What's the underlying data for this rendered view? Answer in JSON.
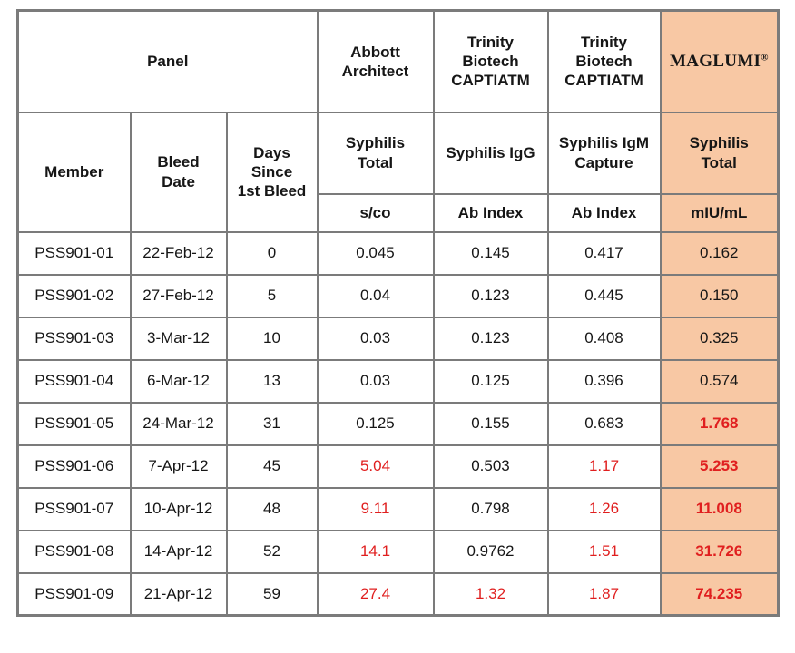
{
  "chart_data": {
    "type": "table",
    "panel_label": "Panel",
    "col_headers": {
      "member": "Member",
      "bleed_date": "Bleed\nDate",
      "days_since": "Days\nSince\n1st Bleed"
    },
    "assays": [
      {
        "vendor": "Abbott\nArchitect",
        "test": "Syphilis\nTotal",
        "unit": "s/co"
      },
      {
        "vendor": "Trinity\nBiotech\nCAPTIATM",
        "test": "Syphilis IgG",
        "unit": "Ab Index"
      },
      {
        "vendor": "Trinity\nBiotech\nCAPTIATM",
        "test": "Syphilis IgM\nCapture",
        "unit": "Ab Index"
      },
      {
        "vendor": "MAGLUMI",
        "vendor_reg": "®",
        "test": "Syphilis\nTotal",
        "unit": "mIU/mL"
      }
    ],
    "rows": [
      {
        "member": "PSS901-01",
        "bleed_date": "22-Feb-12",
        "days_since": "0",
        "abbott": "0.045",
        "igg": "0.145",
        "igm": "0.417",
        "maglumi": "0.162",
        "red_flags": []
      },
      {
        "member": "PSS901-02",
        "bleed_date": "27-Feb-12",
        "days_since": "5",
        "abbott": "0.04",
        "igg": "0.123",
        "igm": "0.445",
        "maglumi": "0.150",
        "red_flags": []
      },
      {
        "member": "PSS901-03",
        "bleed_date": "3-Mar-12",
        "days_since": "10",
        "abbott": "0.03",
        "igg": "0.123",
        "igm": "0.408",
        "maglumi": "0.325",
        "red_flags": []
      },
      {
        "member": "PSS901-04",
        "bleed_date": "6-Mar-12",
        "days_since": "13",
        "abbott": "0.03",
        "igg": "0.125",
        "igm": "0.396",
        "maglumi": "0.574",
        "red_flags": []
      },
      {
        "member": "PSS901-05",
        "bleed_date": "24-Mar-12",
        "days_since": "31",
        "abbott": "0.125",
        "igg": "0.155",
        "igm": "0.683",
        "maglumi": "1.768",
        "red_flags": [
          "maglumi"
        ]
      },
      {
        "member": "PSS901-06",
        "bleed_date": "7-Apr-12",
        "days_since": "45",
        "abbott": "5.04",
        "igg": "0.503",
        "igm": "1.17",
        "maglumi": "5.253",
        "red_flags": [
          "abbott",
          "igm",
          "maglumi"
        ]
      },
      {
        "member": "PSS901-07",
        "bleed_date": "10-Apr-12",
        "days_since": "48",
        "abbott": "9.11",
        "igg": "0.798",
        "igm": "1.26",
        "maglumi": "11.008",
        "red_flags": [
          "abbott",
          "igm",
          "maglumi"
        ]
      },
      {
        "member": "PSS901-08",
        "bleed_date": "14-Apr-12",
        "days_since": "52",
        "abbott": "14.1",
        "igg": "0.9762",
        "igm": "1.51",
        "maglumi": "31.726",
        "red_flags": [
          "abbott",
          "igm",
          "maglumi"
        ]
      },
      {
        "member": "PSS901-09",
        "bleed_date": "21-Apr-12",
        "days_since": "59",
        "abbott": "27.4",
        "igg": "1.32",
        "igm": "1.87",
        "maglumi": "74.235",
        "red_flags": [
          "abbott",
          "igg",
          "igm",
          "maglumi"
        ]
      }
    ]
  },
  "colors": {
    "maglumi_column_bg": "#f8c8a4",
    "flag_red": "#e01f1f",
    "border_gray": "#7b7b7b",
    "maglumi_header_text": "#3a1d10"
  }
}
